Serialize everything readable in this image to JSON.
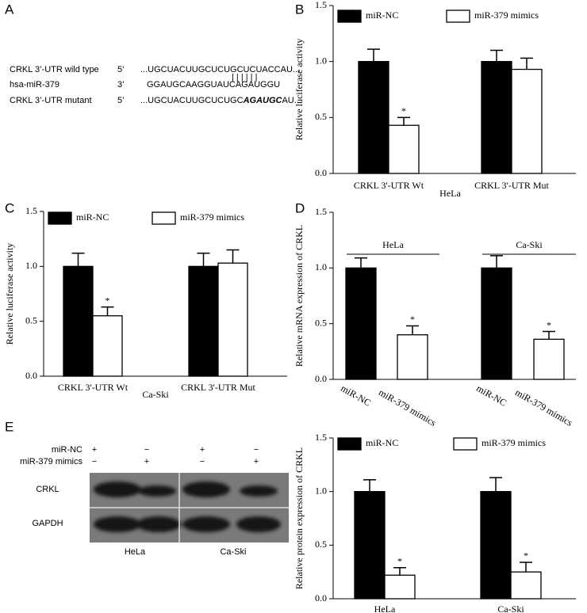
{
  "panel_labels": [
    "A",
    "B",
    "C",
    "D",
    "E"
  ],
  "sequence_panel": {
    "rows": [
      {
        "name": "CRKL 3’-UTR wild type",
        "end": "5’",
        "sequence": "...UGCUACUUGCUCUGCUCUACCAU..."
      },
      {
        "name": "hsa-miR-379",
        "end": "3’",
        "sequence": "GGAUGCAAGGUAUCAGAUGGU"
      },
      {
        "name": "CRKL 3’-UTR mutant",
        "end": "5’",
        "sequence": "...UGCUACUUGCUCUGC",
        "mutation": "AGAUGC",
        "tail": "AU..."
      }
    ]
  },
  "blot_panel": {
    "treatments": [
      {
        "name": "miR-NC",
        "signs": [
          "+",
          "−",
          "+",
          "−"
        ]
      },
      {
        "name": "miR-379 mimics",
        "signs": [
          "−",
          "+",
          "−",
          "+"
        ]
      }
    ],
    "bands": [
      "CRKL",
      "GAPDH"
    ],
    "cells": [
      "HeLa",
      "Ca-Ski"
    ]
  },
  "chart_data": [
    {
      "type": "bar",
      "y_label": "Relative luciferase activity",
      "x_label": "HeLa",
      "categories": [
        "CRKL 3'-UTR Wt",
        "CRKL 3'-UTR Mut"
      ],
      "series": [
        {
          "name": "miR-NC",
          "color": "#000000",
          "values": [
            1.0,
            1.0
          ],
          "errors": [
            0.11,
            0.1
          ],
          "significance": [
            null,
            null
          ]
        },
        {
          "name": "miR-379 mimics",
          "color": "#ffffff",
          "values": [
            0.43,
            0.93
          ],
          "errors": [
            0.07,
            0.1
          ],
          "significance": [
            "*",
            null
          ]
        }
      ],
      "ylim": [
        0,
        1.5
      ],
      "yticks": [
        {
          "value": 0,
          "label": "0.0"
        },
        0.5,
        {
          "value": 1,
          "label": "1.0"
        },
        1.5
      ]
    },
    {
      "type": "bar",
      "y_label": "Relative luciferase activity",
      "x_label": "Ca-Ski",
      "categories": [
        "CRKL 3'-UTR Wt",
        "CRKL 3'-UTR Mut"
      ],
      "series": [
        {
          "name": "miR-NC",
          "color": "#000000",
          "values": [
            1.0,
            1.0
          ],
          "errors": [
            0.12,
            0.12
          ],
          "significance": [
            null,
            null
          ]
        },
        {
          "name": "miR-379 mimics",
          "color": "#ffffff",
          "values": [
            0.55,
            1.03
          ],
          "errors": [
            0.08,
            0.12
          ],
          "significance": [
            "*",
            null
          ]
        }
      ],
      "ylim": [
        0,
        1.5
      ],
      "yticks": [
        {
          "value": 0,
          "label": "0.0"
        },
        0.5,
        {
          "value": 1,
          "label": "1.0"
        },
        1.5
      ]
    },
    {
      "type": "single_bar",
      "y_label": "Relative mRNA expression of CRKL",
      "categories": [
        "miR-NC",
        "miR-379 mimics",
        "miR-NC",
        "miR-379 mimics"
      ],
      "values": [
        1.0,
        0.4,
        1.0,
        0.36
      ],
      "errors": [
        0.09,
        0.08,
        0.11,
        0.07
      ],
      "colors": [
        "#000000",
        "#ffffff",
        "#000000",
        "#ffffff"
      ],
      "significance": [
        null,
        "*",
        null,
        "*"
      ],
      "group_labels": [
        "HeLa",
        "Ca-Ski"
      ],
      "ylim": [
        0,
        1.5
      ],
      "yticks": [
        {
          "value": 0,
          "label": "0.0"
        },
        0.5,
        {
          "value": 1,
          "label": "1.0"
        },
        1.5
      ]
    },
    {
      "type": "bar",
      "y_label": "Relative protein expression of CRKL",
      "categories": [
        "HeLa",
        "Ca-Ski"
      ],
      "series": [
        {
          "name": "miR-NC",
          "color": "#000000",
          "values": [
            1.0,
            1.0
          ],
          "errors": [
            0.11,
            0.13
          ],
          "significance": [
            null,
            null
          ]
        },
        {
          "name": "miR-379 mimics",
          "color": "#ffffff",
          "values": [
            0.22,
            0.25
          ],
          "errors": [
            0.07,
            0.09
          ],
          "significance": [
            "*",
            "*"
          ]
        }
      ],
      "ylim": [
        0,
        1.5
      ],
      "yticks": [
        {
          "value": 0,
          "label": "0.0"
        },
        0.5,
        {
          "value": 1,
          "label": "1.0"
        },
        1.5
      ]
    }
  ]
}
